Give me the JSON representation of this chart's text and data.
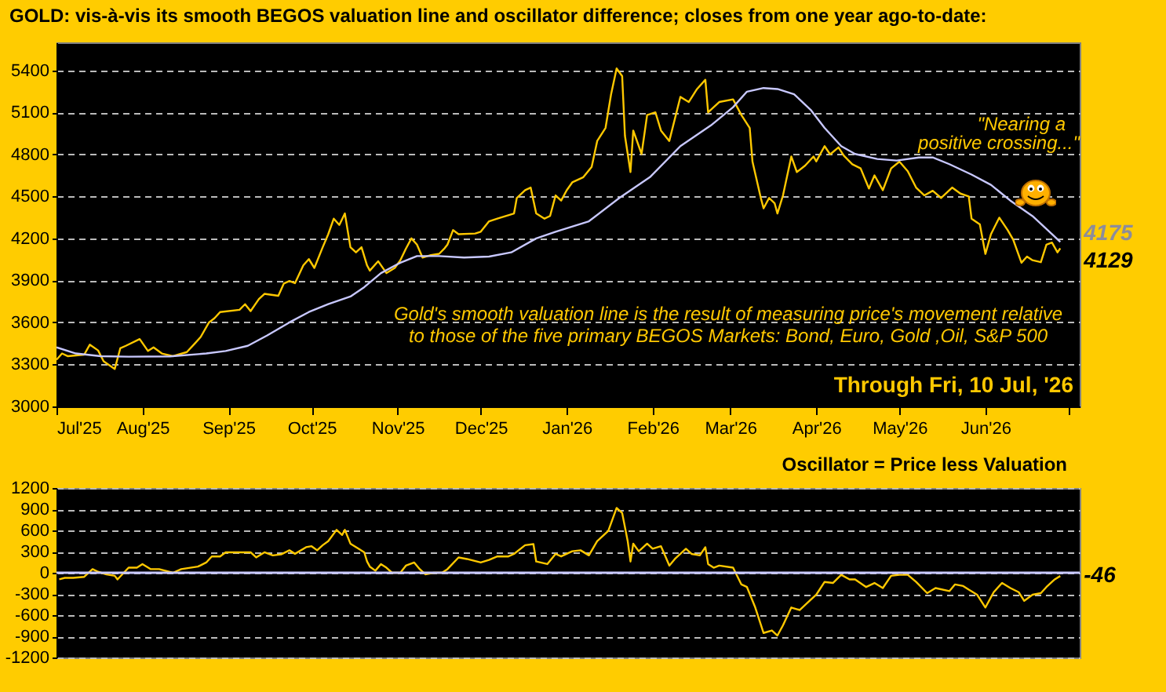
{
  "chart_data": [
    {
      "type": "line",
      "title": "GOLD:  vis-à-vis its smooth BEGOS valuation line and oscillator difference; closes from one year ago-to-date:",
      "xlim": [
        "2025-07-01",
        "2026-07-05"
      ],
      "xticks": [
        {
          "value": "2025-07-01",
          "label": "Jul'25"
        },
        {
          "value": "2025-08-01",
          "label": "Aug'25"
        },
        {
          "value": "2025-09-01",
          "label": "Sep'25"
        },
        {
          "value": "2025-10-01",
          "label": "Oct'25"
        },
        {
          "value": "2025-11-01",
          "label": "Nov'25"
        },
        {
          "value": "2025-12-01",
          "label": "Dec'25"
        },
        {
          "value": "2026-01-01",
          "label": "Jan'26"
        },
        {
          "value": "2026-02-01",
          "label": "Feb'26"
        },
        {
          "value": "2026-03-01",
          "label": "Mar'26"
        },
        {
          "value": "2026-04-01",
          "label": "Apr'26"
        },
        {
          "value": "2026-05-01",
          "label": "May'26"
        },
        {
          "value": "2026-06-01",
          "label": "Jun'26"
        },
        {
          "value": "2026-07-01",
          "label": null
        }
      ],
      "ylim": [
        3000,
        5600
      ],
      "yticks": [
        3000,
        3300,
        3600,
        3900,
        4200,
        4500,
        4800,
        5100,
        5400
      ],
      "grid": "y",
      "series": [
        {
          "color": "#ffc800",
          "x": [
            "2025-07-01",
            "2025-07-03",
            "2025-07-05",
            "2025-07-11",
            "2025-07-13",
            "2025-07-16",
            "2025-07-18",
            "2025-07-22",
            "2025-07-24",
            "2025-07-26",
            "2025-07-31",
            "2025-08-03",
            "2025-08-05",
            "2025-08-08",
            "2025-08-12",
            "2025-08-17",
            "2025-08-20",
            "2025-08-22",
            "2025-08-25",
            "2025-08-27",
            "2025-08-29",
            "2025-09-05",
            "2025-09-07",
            "2025-09-09",
            "2025-09-12",
            "2025-09-14",
            "2025-09-19",
            "2025-09-21",
            "2025-09-23",
            "2025-09-25",
            "2025-09-28",
            "2025-09-30",
            "2025-10-02",
            "2025-10-05",
            "2025-10-07",
            "2025-10-09",
            "2025-10-11",
            "2025-10-13",
            "2025-10-15",
            "2025-10-17",
            "2025-10-19",
            "2025-10-21",
            "2025-10-22",
            "2025-10-25",
            "2025-10-28",
            "2025-10-31",
            "2025-11-02",
            "2025-11-04",
            "2025-11-06",
            "2025-11-08",
            "2025-11-10",
            "2025-11-13",
            "2025-11-16",
            "2025-11-18",
            "2025-11-19",
            "2025-11-21",
            "2025-11-23",
            "2025-11-29",
            "2025-12-01",
            "2025-12-04",
            "2025-12-07",
            "2025-12-13",
            "2025-12-14",
            "2025-12-17",
            "2025-12-19",
            "2025-12-21",
            "2025-12-24",
            "2025-12-26",
            "2025-12-28",
            "2025-12-30",
            "2026-01-01",
            "2026-01-03",
            "2026-01-07",
            "2026-01-10",
            "2026-01-12",
            "2026-01-15",
            "2026-01-17",
            "2026-01-19",
            "2026-01-21",
            "2026-01-22",
            "2026-01-24",
            "2026-01-25",
            "2026-01-28",
            "2026-01-30",
            "2026-02-02",
            "2026-02-04",
            "2026-02-07",
            "2026-02-11",
            "2026-02-14",
            "2026-02-17",
            "2026-02-20",
            "2026-02-21",
            "2026-02-25",
            "2026-03-02",
            "2026-03-05",
            "2026-03-08",
            "2026-03-09",
            "2026-03-12",
            "2026-03-13",
            "2026-03-15",
            "2026-03-17",
            "2026-03-18",
            "2026-03-20",
            "2026-03-23",
            "2026-03-25",
            "2026-03-28",
            "2026-03-31",
            "2026-04-01",
            "2026-04-04",
            "2026-04-06",
            "2026-04-09",
            "2026-04-11",
            "2026-04-14",
            "2026-04-17",
            "2026-04-20",
            "2026-04-22",
            "2026-04-25",
            "2026-04-28",
            "2026-05-01",
            "2026-05-04",
            "2026-05-07",
            "2026-05-10",
            "2026-05-13",
            "2026-05-16",
            "2026-05-20",
            "2026-05-23",
            "2026-05-26",
            "2026-05-27",
            "2026-05-30",
            "2026-06-01",
            "2026-06-03",
            "2026-06-06",
            "2026-06-09",
            "2026-06-11",
            "2026-06-14",
            "2026-06-16",
            "2026-06-18",
            "2026-06-21",
            "2026-06-23",
            "2026-06-25",
            "2026-06-27",
            "2026-06-28"
          ],
          "values": [
            3333,
            3378,
            3359,
            3370,
            3441,
            3400,
            3322,
            3267,
            3415,
            3433,
            3481,
            3396,
            3422,
            3378,
            3359,
            3388,
            3452,
            3496,
            3600,
            3630,
            3674,
            3690,
            3730,
            3681,
            3767,
            3804,
            3790,
            3878,
            3896,
            3880,
            4007,
            4052,
            3989,
            4137,
            4230,
            4341,
            4296,
            4378,
            4137,
            4100,
            4137,
            4007,
            3970,
            4037,
            3952,
            3989,
            4044,
            4126,
            4200,
            4156,
            4063,
            4081,
            4090,
            4130,
            4156,
            4259,
            4230,
            4235,
            4248,
            4322,
            4341,
            4378,
            4489,
            4544,
            4563,
            4378,
            4341,
            4360,
            4507,
            4470,
            4544,
            4600,
            4637,
            4711,
            4896,
            4989,
            5229,
            5414,
            5359,
            4933,
            4674,
            4970,
            4803,
            5081,
            5100,
            4970,
            4896,
            5211,
            5174,
            5267,
            5333,
            5100,
            5174,
            5193,
            5081,
            4989,
            4748,
            4489,
            4415,
            4489,
            4450,
            4378,
            4507,
            4785,
            4674,
            4720,
            4785,
            4750,
            4859,
            4800,
            4850,
            4790,
            4729,
            4700,
            4556,
            4650,
            4544,
            4700,
            4748,
            4680,
            4563,
            4507,
            4540,
            4489,
            4563,
            4520,
            4500,
            4341,
            4300,
            4089,
            4230,
            4348,
            4260,
            4192,
            4026,
            4070,
            4044,
            4030,
            4155,
            4170,
            4100,
            4129
          ]
        },
        {
          "color": "#c8c8ff",
          "x": [
            "2025-07-01",
            "2025-07-08",
            "2025-07-17",
            "2025-07-27",
            "2025-08-11",
            "2025-08-24",
            "2025-08-31",
            "2025-09-08",
            "2025-09-15",
            "2025-09-23",
            "2025-09-30",
            "2025-10-07",
            "2025-10-15",
            "2025-10-20",
            "2025-10-26",
            "2025-11-02",
            "2025-11-08",
            "2025-11-16",
            "2025-11-25",
            "2025-12-04",
            "2025-12-12",
            "2025-12-21",
            "2025-12-28",
            "2026-01-09",
            "2026-01-20",
            "2026-01-31",
            "2026-02-11",
            "2026-02-22",
            "2026-03-02",
            "2026-03-07",
            "2026-03-13",
            "2026-03-18",
            "2026-03-24",
            "2026-03-30",
            "2026-04-04",
            "2026-04-10",
            "2026-04-15",
            "2026-04-23",
            "2026-04-30",
            "2026-05-08",
            "2026-05-13",
            "2026-05-19",
            "2026-05-27",
            "2026-06-03",
            "2026-06-10",
            "2026-06-18",
            "2026-06-25",
            "2026-06-28"
          ],
          "values": [
            3422,
            3378,
            3359,
            3355,
            3357,
            3378,
            3396,
            3433,
            3507,
            3600,
            3674,
            3730,
            3785,
            3852,
            3952,
            4026,
            4074,
            4074,
            4063,
            4070,
            4100,
            4200,
            4248,
            4322,
            4489,
            4637,
            4859,
            5007,
            5137,
            5248,
            5274,
            5267,
            5230,
            5118,
            4989,
            4859,
            4803,
            4767,
            4756,
            4778,
            4778,
            4730,
            4656,
            4582,
            4470,
            4359,
            4230,
            4175
          ]
        }
      ],
      "annotations": [
        "\"Nearing a",
        "positive crossing...\"",
        "Gold's smooth valuation line is the result of measuring price's movement relative",
        "to those of the five primary BEGOS Markets:  Bond, Euro, Gold ,Oil, S&P 500",
        "Through Fri, 10 Jul, '26",
        {
          "text": "4175",
          "x": "2026-06-28",
          "y": 4175
        },
        {
          "text": "4129",
          "x": "2026-06-28",
          "y": 4129
        }
      ]
    },
    {
      "type": "line",
      "title": "Oscillator = Price less Valuation",
      "xlim": [
        "2025-07-01",
        "2026-07-05"
      ],
      "tick_labels": "y",
      "ylim": [
        -1200,
        1200
      ],
      "yticks": [
        -1200,
        -900,
        -600,
        -300,
        0,
        300,
        600,
        900,
        1200
      ],
      "grid": "y",
      "ref_lines": [
        {
          "axis": "y",
          "value": 0,
          "color": "#c8c8ff"
        }
      ],
      "series": [
        {
          "color": "#ffc800",
          "x": [
            "2025-07-02",
            "2025-07-04",
            "2025-07-07",
            "2025-07-11",
            "2025-07-14",
            "2025-07-16",
            "2025-07-19",
            "2025-07-22",
            "2025-07-23",
            "2025-07-27",
            "2025-07-30",
            "2025-08-01",
            "2025-08-04",
            "2025-08-07",
            "2025-08-12",
            "2025-08-15",
            "2025-08-21",
            "2025-08-24",
            "2025-08-26",
            "2025-08-29",
            "2025-08-31",
            "2025-09-06",
            "2025-09-09",
            "2025-09-11",
            "2025-09-14",
            "2025-09-17",
            "2025-09-20",
            "2025-09-23",
            "2025-09-25",
            "2025-09-29",
            "2025-10-01",
            "2025-10-03",
            "2025-10-05",
            "2025-10-07",
            "2025-10-10",
            "2025-10-12",
            "2025-10-13",
            "2025-10-15",
            "2025-10-18",
            "2025-10-20",
            "2025-10-21",
            "2025-10-22",
            "2025-10-24",
            "2025-10-26",
            "2025-10-28",
            "2025-10-30",
            "2025-11-02",
            "2025-11-04",
            "2025-11-07",
            "2025-11-09",
            "2025-11-11",
            "2025-11-14",
            "2025-11-17",
            "2025-11-19",
            "2025-11-23",
            "2025-11-26",
            "2025-12-01",
            "2025-12-04",
            "2025-12-07",
            "2025-12-11",
            "2025-12-13",
            "2025-12-17",
            "2025-12-20",
            "2025-12-21",
            "2025-12-25",
            "2025-12-28",
            "2025-12-30",
            "2026-01-03",
            "2026-01-06",
            "2026-01-09",
            "2026-01-12",
            "2026-01-16",
            "2026-01-19",
            "2026-01-21",
            "2026-01-23",
            "2026-01-24",
            "2026-01-25",
            "2026-01-27",
            "2026-01-30",
            "2026-02-01",
            "2026-02-04",
            "2026-02-06",
            "2026-02-07",
            "2026-02-09",
            "2026-02-13",
            "2026-02-15",
            "2026-02-18",
            "2026-02-20",
            "2026-02-21",
            "2026-02-23",
            "2026-02-25",
            "2026-03-02",
            "2026-03-05",
            "2026-03-07",
            "2026-03-10",
            "2026-03-13",
            "2026-03-16",
            "2026-03-18",
            "2026-03-20",
            "2026-03-23",
            "2026-03-26",
            "2026-03-30",
            "2026-04-01",
            "2026-04-04",
            "2026-04-07",
            "2026-04-10",
            "2026-04-13",
            "2026-04-15",
            "2026-04-19",
            "2026-04-22",
            "2026-04-25",
            "2026-04-28",
            "2026-05-01",
            "2026-05-04",
            "2026-05-07",
            "2026-05-11",
            "2026-05-14",
            "2026-05-19",
            "2026-05-21",
            "2026-05-24",
            "2026-05-26",
            "2026-05-29",
            "2026-06-01",
            "2026-06-04",
            "2026-06-07",
            "2026-06-10",
            "2026-06-13",
            "2026-06-15",
            "2026-06-18",
            "2026-06-21",
            "2026-06-23",
            "2026-06-26",
            "2026-06-28"
          ],
          "values": [
            -94,
            -72,
            -72,
            -58,
            51,
            14,
            -22,
            -43,
            -94,
            72,
            72,
            123,
            51,
            51,
            0,
            51,
            87,
            145,
            231,
            231,
            289,
            289,
            289,
            217,
            289,
            246,
            260,
            318,
            268,
            362,
            376,
            318,
            390,
            448,
            607,
            535,
            607,
            412,
            340,
            289,
            159,
            87,
            29,
            123,
            72,
            0,
            0,
            101,
            145,
            51,
            -22,
            0,
            0,
            51,
            217,
            195,
            145,
            181,
            231,
            231,
            267,
            390,
            405,
            159,
            123,
            267,
            231,
            304,
            318,
            246,
            448,
            593,
            918,
            846,
            448,
            159,
            412,
            304,
            412,
            340,
            376,
            195,
            101,
            195,
            340,
            267,
            246,
            362,
            123,
            72,
            101,
            72,
            -166,
            -202,
            -492,
            -853,
            -817,
            -889,
            -745,
            -492,
            -528,
            -383,
            -311,
            -130,
            -145,
            -29,
            -94,
            -94,
            -202,
            -145,
            -217,
            -43,
            -29,
            -29,
            -130,
            -289,
            -217,
            -260,
            -166,
            -188,
            -239,
            -311,
            -492,
            -275,
            -145,
            -217,
            -275,
            -398,
            -311,
            -289,
            -202,
            -94,
            -46
          ]
        }
      ],
      "annotations": [
        {
          "text": "-46",
          "x": "2026-06-28",
          "y": -46
        }
      ]
    }
  ]
}
